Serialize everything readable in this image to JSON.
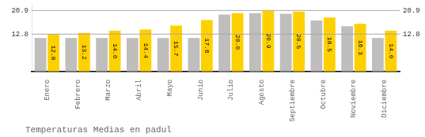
{
  "chart_data": {
    "type": "bar",
    "title": "Temperaturas Medias en padul",
    "categories": [
      "Enero",
      "Febrero",
      "Marzo",
      "Abril",
      "Mayo",
      "Junio",
      "Julio",
      "Agosto",
      "Septiembre",
      "Octubre",
      "Noviembre",
      "Diciembre"
    ],
    "series": [
      {
        "color": "#C0BDBD",
        "values": [
          11.5,
          11.5,
          11.5,
          11.5,
          11.5,
          11.5,
          19.5,
          20.0,
          19.8,
          17.5,
          15.5,
          11.5
        ]
      },
      {
        "color": "#FFD000",
        "values": [
          12.8,
          13.2,
          14.0,
          14.4,
          15.7,
          17.6,
          20.0,
          20.9,
          20.5,
          18.5,
          16.3,
          14.0
        ],
        "value_labels": [
          "12.8",
          "13.2",
          "14.0",
          "14.4",
          "15.7",
          "17.6",
          "20.0",
          "20.9",
          "20.5",
          "18.5",
          "16.3",
          "14.0"
        ],
        "data_labels": true
      }
    ],
    "annotations": [
      {
        "y": 20.9,
        "label_left": "20.9",
        "label_right": "20.9"
      },
      {
        "y": 12.8,
        "label_left": "12.8",
        "label_right": "12.8"
      }
    ],
    "ylim": [
      0,
      23.408
    ],
    "grid": false,
    "tick_labels": "x"
  }
}
